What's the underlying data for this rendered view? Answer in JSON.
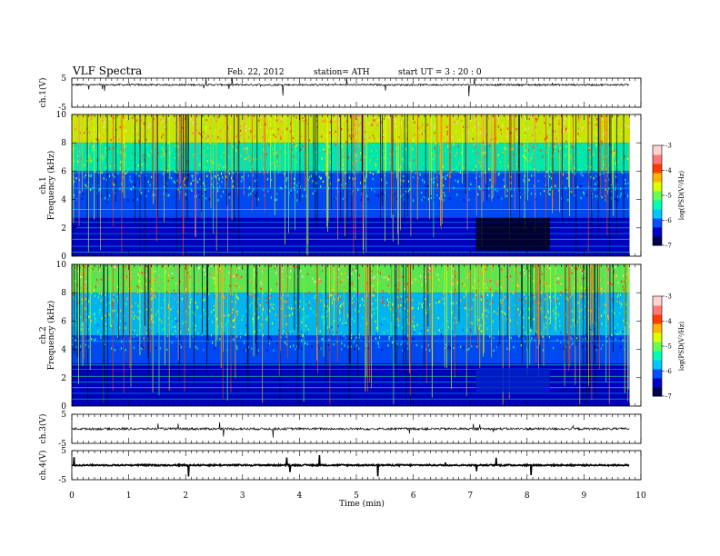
{
  "header": {
    "title": "VLF  Spectra",
    "date": "Feb. 22, 2012",
    "station": "station= ATH",
    "start": "start  UT  =   3  : 20 : 0"
  },
  "chart_data": [
    {
      "type": "line",
      "name": "ch1-waveform",
      "ylabel": "ch.1(V)",
      "ylim": [
        -5,
        5
      ],
      "y_ticks": [
        "5",
        "-5"
      ],
      "baseline": 2.7,
      "noise_amplitude": 0.3
    },
    {
      "type": "heatmap",
      "name": "ch1-spectrogram",
      "ylabel_line1": "ch.1",
      "ylabel_line2": "Frequency (kHz)",
      "ylim": [
        0,
        10
      ],
      "y_ticks": [
        "0",
        "2",
        "4",
        "6",
        "8",
        "10"
      ],
      "data_extent_min": 9.8,
      "colorbar": {
        "label": "log(PSD(V²/Hz)",
        "range": [
          -7,
          -3
        ],
        "ticks": [
          "-3",
          "-4",
          "-5",
          "-6",
          "-7"
        ],
        "colors": [
          "#000050",
          "#0000c8",
          "#0050ff",
          "#00c8ff",
          "#00ffb4",
          "#64ff50",
          "#dcff00",
          "#ffb400",
          "#ff3c00",
          "#ff7878",
          "#ffd2d2"
        ]
      }
    },
    {
      "type": "heatmap",
      "name": "ch2-spectrogram",
      "ylabel_line1": "ch.2",
      "ylabel_line2": "Frequency (kHz)",
      "ylim": [
        0,
        10
      ],
      "y_ticks": [
        "0",
        "2",
        "4",
        "6",
        "8",
        "10"
      ],
      "data_extent_min": 9.8,
      "colorbar": {
        "label": "log(PSD(V²/Hz)",
        "range": [
          -7,
          -3
        ],
        "ticks": [
          "-3",
          "-4",
          "-5",
          "-6",
          "-7"
        ]
      }
    },
    {
      "type": "line",
      "name": "ch3-waveform",
      "ylabel": "ch.3(V)",
      "ylim": [
        -5,
        5
      ],
      "y_ticks": [
        "5",
        "-5"
      ],
      "baseline": 0,
      "noise_amplitude": 0.4
    },
    {
      "type": "line",
      "name": "ch4-waveform",
      "ylabel": "ch.4(V)",
      "ylim": [
        -5,
        5
      ],
      "y_ticks": [
        "5",
        "-5"
      ],
      "baseline": 0,
      "noise_amplitude": 0.25
    }
  ],
  "x_axis": {
    "label": "Time  (min)",
    "range": [
      0,
      10
    ],
    "ticks": [
      "0",
      "1",
      "2",
      "3",
      "4",
      "5",
      "6",
      "7",
      "8",
      "9",
      "10"
    ]
  }
}
